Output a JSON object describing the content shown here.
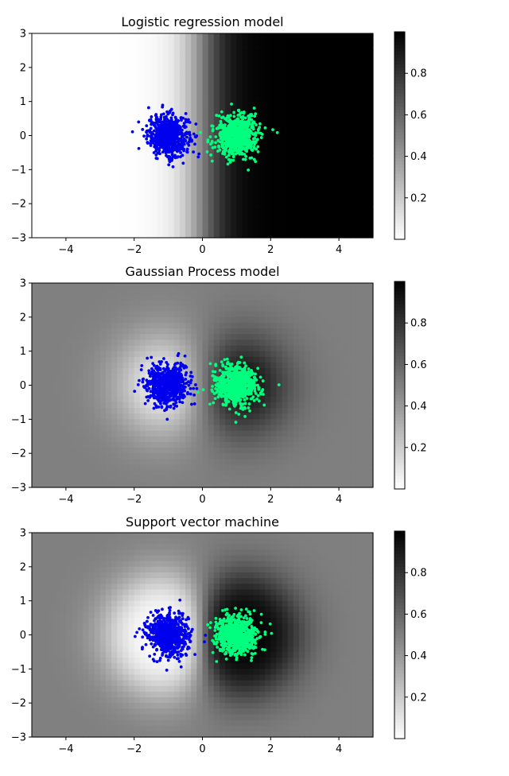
{
  "chart_data": [
    {
      "type": "heatmap",
      "title": "Logistic regression model",
      "xlim": [
        -5,
        5
      ],
      "ylim": [
        -3,
        3
      ],
      "xticks": [
        "−4",
        "−2",
        "0",
        "2",
        "4"
      ],
      "yticks": [
        "−3",
        "−2",
        "−1",
        "0",
        "1",
        "2",
        "3"
      ],
      "colorbar": {
        "colormap": "gray_r",
        "range": [
          0,
          1
        ],
        "ticks": [
          "0.2",
          "0.4",
          "0.6",
          "0.8"
        ]
      },
      "surface": {
        "kind": "logistic",
        "center_x": 0.0,
        "slope": 2.5
      },
      "series": [
        {
          "color": "#0000ee",
          "center": [
            -1.0,
            0.0
          ],
          "spread": 0.3
        },
        {
          "color": "#00ff7f",
          "center": [
            1.0,
            0.0
          ],
          "spread": 0.3
        }
      ]
    },
    {
      "type": "heatmap",
      "title": "Gaussian Process model",
      "xlim": [
        -5,
        5
      ],
      "ylim": [
        -3,
        3
      ],
      "xticks": [
        "−4",
        "−2",
        "0",
        "2",
        "4"
      ],
      "yticks": [
        "−3",
        "−2",
        "−1",
        "0",
        "1",
        "2",
        "3"
      ],
      "colorbar": {
        "colormap": "gray_r",
        "range": [
          0,
          1
        ],
        "ticks": [
          "0.2",
          "0.4",
          "0.6",
          "0.8"
        ]
      },
      "surface": {
        "kind": "rbf",
        "centers_x": [
          -1.0,
          1.0
        ],
        "length_scale": 1.05,
        "baseline": 0.5
      },
      "series": [
        {
          "color": "#0000ee",
          "center": [
            -1.0,
            0.0
          ],
          "spread": 0.3
        },
        {
          "color": "#00ff7f",
          "center": [
            1.0,
            0.0
          ],
          "spread": 0.3
        }
      ]
    },
    {
      "type": "heatmap",
      "title": "Support vector machine",
      "xlim": [
        -5,
        5
      ],
      "ylim": [
        -3,
        3
      ],
      "xticks": [
        "−4",
        "−2",
        "0",
        "2",
        "4"
      ],
      "yticks": [
        "−3",
        "−2",
        "−1",
        "0",
        "1",
        "2",
        "3"
      ],
      "colorbar": {
        "colormap": "gray_r",
        "range": [
          0,
          1
        ],
        "ticks": [
          "0.2",
          "0.4",
          "0.6",
          "0.8"
        ]
      },
      "surface": {
        "kind": "rbf_sharp",
        "centers_x": [
          -1.0,
          1.0
        ],
        "length_scale": 1.05,
        "baseline": 0.5
      },
      "series": [
        {
          "color": "#0000ee",
          "center": [
            -1.0,
            0.0
          ],
          "spread": 0.3
        },
        {
          "color": "#00ff7f",
          "center": [
            1.0,
            0.0
          ],
          "spread": 0.3
        }
      ]
    }
  ]
}
